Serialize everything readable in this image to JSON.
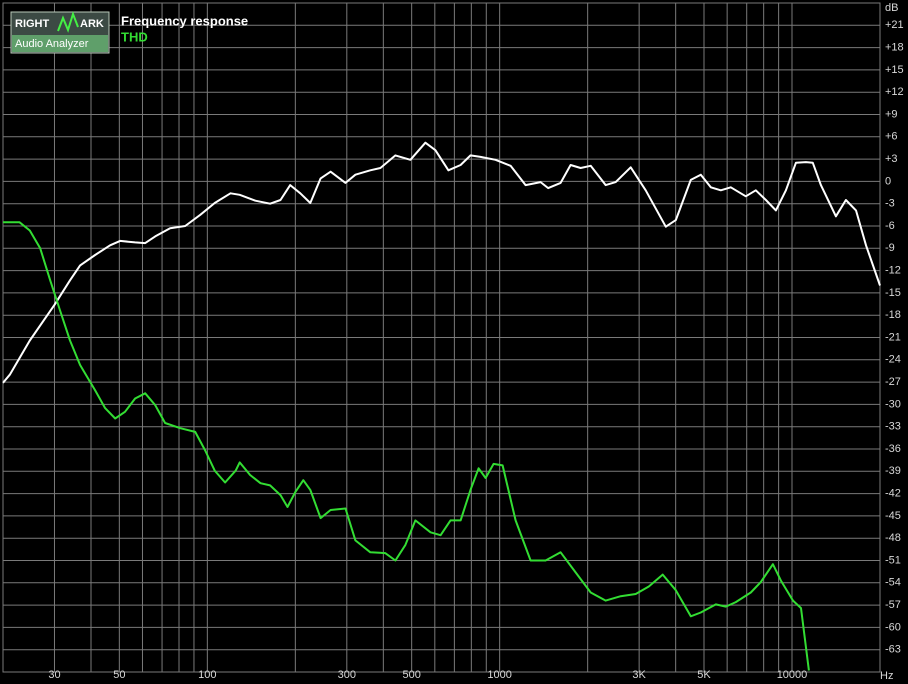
{
  "logo": {
    "left": "RIGHT",
    "right": "ARK",
    "subtitle": "Audio Analyzer"
  },
  "chart_data": {
    "type": "line",
    "x_unit": "Hz",
    "y_unit": "dB",
    "log_x": true,
    "grid": true,
    "xlim": [
      20,
      20000
    ],
    "ylim": [
      -66,
      24
    ],
    "xticks": [
      30,
      50,
      100,
      300,
      500,
      1000,
      {
        "value": 3000,
        "label": "3K"
      },
      {
        "value": 5000,
        "label": "5K"
      },
      10000
    ],
    "xgrid": [
      20,
      30,
      40,
      50,
      60,
      70,
      80,
      90,
      100,
      200,
      300,
      400,
      500,
      600,
      700,
      800,
      900,
      1000,
      2000,
      3000,
      4000,
      5000,
      6000,
      7000,
      8000,
      9000,
      10000,
      20000
    ],
    "yticks": [
      {
        "value": 21,
        "label": "+21"
      },
      {
        "value": 18,
        "label": "+18"
      },
      {
        "value": 15,
        "label": "+15"
      },
      {
        "value": 12,
        "label": "+12"
      },
      {
        "value": 9,
        "label": "+9"
      },
      {
        "value": 6,
        "label": "+6"
      },
      {
        "value": 3,
        "label": "+3"
      },
      0,
      -3,
      -6,
      -9,
      -12,
      -15,
      -18,
      -21,
      -24,
      -27,
      -30,
      -33,
      -36,
      -39,
      -42,
      -45,
      -48,
      -51,
      -54,
      -57,
      -60,
      -63
    ],
    "series": [
      {
        "name": "Frequency response",
        "color": "#ffffff",
        "x": [
          20,
          21.1,
          24.7,
          30,
          33.9,
          36.7,
          41.3,
          46.5,
          50.3,
          56.6,
          61.3,
          66.3,
          74.6,
          84,
          94.6,
          106,
          120,
          129,
          146,
          164,
          178,
          192,
          208,
          225,
          244,
          264,
          297,
          321,
          361,
          391,
          440,
          495,
          557,
          603,
          668,
          735,
          795,
          860,
          968,
          1090,
          1227,
          1381,
          1466,
          1616,
          1749,
          1892,
          2048,
          2305,
          2494,
          2807,
          3159,
          3700,
          4003,
          4505,
          4875,
          5275,
          5708,
          6176,
          6951,
          7522,
          8139,
          8807,
          9530,
          10312,
          11158,
          11777,
          12559,
          14135,
          15294,
          16549,
          17908,
          20000
        ],
        "values": [
          -27.1,
          -26.0,
          -21.4,
          -16.6,
          -13.3,
          -11.3,
          -9.9,
          -8.6,
          -8.0,
          -8.2,
          -8.3,
          -7.4,
          -6.3,
          -6.0,
          -4.5,
          -2.9,
          -1.6,
          -1.8,
          -2.6,
          -3.0,
          -2.5,
          -0.5,
          -1.6,
          -2.9,
          0.4,
          1.3,
          -0.2,
          0.9,
          1.5,
          1.8,
          3.5,
          2.9,
          5.2,
          4.2,
          1.5,
          2.2,
          3.5,
          3.3,
          2.9,
          2.1,
          -0.5,
          -0.1,
          -0.9,
          -0.2,
          2.2,
          1.8,
          2.1,
          -0.5,
          -0.1,
          1.9,
          -1.2,
          -6.1,
          -5.2,
          0.2,
          0.9,
          -0.8,
          -1.2,
          -0.8,
          -2.0,
          -1.2,
          -2.5,
          -3.9,
          -1.2,
          2.5,
          2.6,
          2.5,
          -0.5,
          -4.7,
          -2.5,
          -3.9,
          -8.6,
          -14.0
        ]
      },
      {
        "name": "THD",
        "color": "#33dd33",
        "x": [
          20,
          22.8,
          24.7,
          26.8,
          29,
          31.3,
          33.9,
          36.7,
          41.3,
          44.7,
          48.4,
          52.3,
          56.6,
          61.3,
          66.3,
          71.7,
          80.8,
          90.9,
          98.3,
          106,
          115,
          125,
          129,
          140,
          152,
          164,
          178,
          188,
          200,
          213,
          225,
          244,
          264,
          297,
          321,
          361,
          406,
          440,
          476,
          515,
          580,
          628,
          679,
          735,
          795,
          847,
          895,
          953,
          1023,
          1134,
          1276,
          1436,
          1616,
          1819,
          2048,
          2305,
          2594,
          2920,
          3236,
          3612,
          4003,
          4505,
          4875,
          5487,
          5938,
          6424,
          7231,
          7824,
          8602,
          9163,
          10076,
          10731,
          11423
        ],
        "values": [
          -5.5,
          -5.5,
          -6.6,
          -9.0,
          -13.3,
          -17.3,
          -21.4,
          -24.7,
          -28.1,
          -30.5,
          -31.9,
          -31.0,
          -29.2,
          -28.5,
          -30.1,
          -32.5,
          -33.2,
          -33.7,
          -36.2,
          -38.9,
          -40.5,
          -38.9,
          -37.8,
          -39.5,
          -40.6,
          -40.9,
          -42.2,
          -43.8,
          -41.8,
          -40.2,
          -41.5,
          -45.3,
          -44.2,
          -44.0,
          -48.3,
          -49.9,
          -50.0,
          -51.0,
          -48.9,
          -45.6,
          -47.2,
          -47.6,
          -45.6,
          -45.6,
          -41.5,
          -38.6,
          -39.9,
          -38.0,
          -38.2,
          -45.6,
          -51.0,
          -51.0,
          -49.9,
          -52.6,
          -55.3,
          -56.4,
          -55.8,
          -55.5,
          -54.5,
          -52.9,
          -55.0,
          -58.5,
          -58.0,
          -56.9,
          -57.2,
          -56.6,
          -55.3,
          -53.9,
          -51.5,
          -53.7,
          -56.4,
          -57.4,
          -65.8
        ]
      }
    ]
  }
}
